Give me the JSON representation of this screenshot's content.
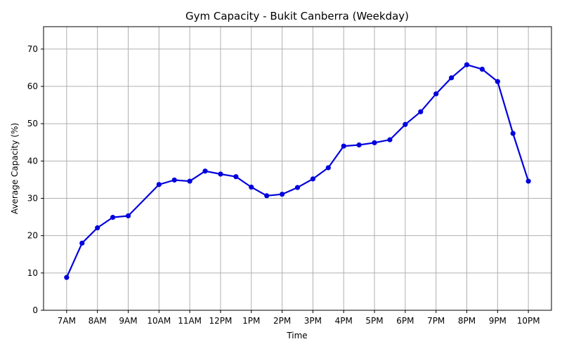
{
  "chart_data": {
    "type": "line",
    "title": "Gym Capacity - Bukit Canberra (Weekday)",
    "xlabel": "Time",
    "ylabel": "Average Capacity (%)",
    "x_tick_labels": [
      "7AM",
      "8AM",
      "9AM",
      "10AM",
      "11AM",
      "12PM",
      "1PM",
      "2PM",
      "3PM",
      "4PM",
      "5PM",
      "6PM",
      "7PM",
      "8PM",
      "9PM",
      "10PM"
    ],
    "x_tick_values": [
      7,
      8,
      9,
      10,
      11,
      12,
      13,
      14,
      15,
      16,
      17,
      18,
      19,
      20,
      21,
      22
    ],
    "y_ticks": [
      0,
      10,
      20,
      30,
      40,
      50,
      60,
      70
    ],
    "ylim": [
      0,
      76
    ],
    "xlim": [
      6.25,
      22.75
    ],
    "grid": true,
    "line_color": "#0000dd",
    "series": [
      {
        "x": [
          7,
          7.5,
          8,
          8.5,
          9,
          10,
          10.5,
          11,
          11.5,
          12,
          12.5,
          13,
          13.5,
          14,
          14.5,
          15,
          15.5,
          16,
          16.5,
          17,
          17.5,
          18,
          18.5,
          19,
          19.5,
          20,
          20.5,
          21,
          21.5,
          22
        ],
        "values": [
          8.8,
          18.0,
          22.1,
          24.9,
          25.3,
          33.7,
          34.9,
          34.6,
          37.3,
          36.5,
          35.8,
          33.0,
          30.7,
          31.1,
          32.9,
          35.2,
          38.2,
          44.0,
          44.3,
          44.9,
          45.7,
          49.8,
          53.2,
          58.0,
          62.3,
          65.8,
          64.6,
          61.3,
          47.4,
          34.6
        ]
      }
    ]
  }
}
